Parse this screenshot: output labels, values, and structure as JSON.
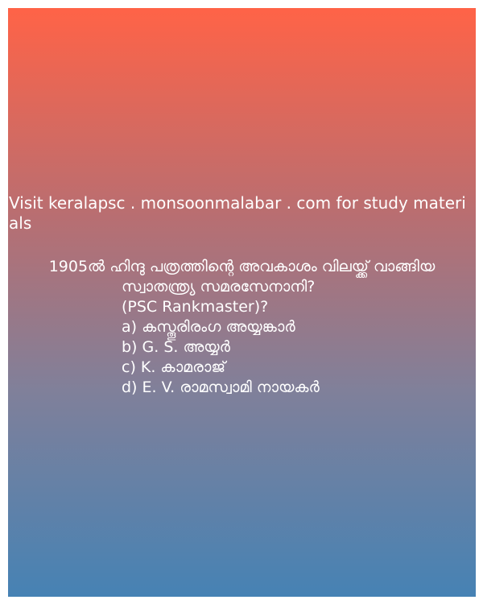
{
  "promo_text": "Visit keralapsc . monsoonmalabar . com for study materials",
  "question": {
    "line1": "1905ൽ ഹിന്ദു പത്രത്തിന്റെ അവകാശം വിലയ്ക്ക് വാങ്ങിയ",
    "line2": "സ്വാതന്ത്ര്യ സമരസേനാനി?",
    "source": "(PSC Rankmaster)?",
    "options": [
      "a) കസ്തൂരിരംഗ അയ്യങ്കാർ",
      "b) G. S. അയ്യർ",
      "c) K. കാമരാജ്",
      "d) E. V. രാമസ്വാമി നായകർ"
    ]
  },
  "colors": {
    "gradient_top": "#ff6347",
    "gradient_bottom": "#4682b4",
    "text": "#ffffff"
  }
}
